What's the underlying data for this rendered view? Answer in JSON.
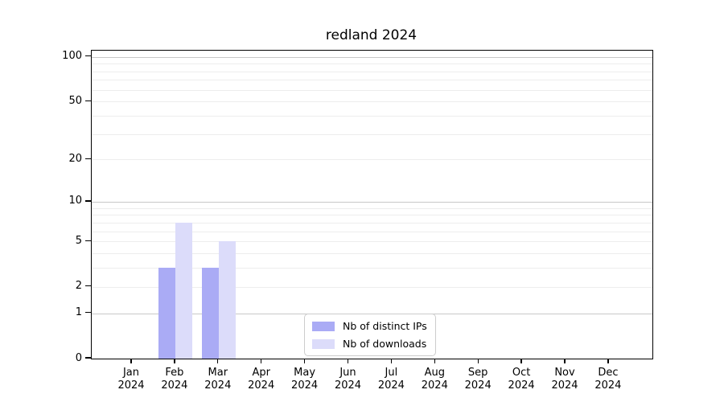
{
  "chart_data": {
    "type": "bar",
    "title": "redland 2024",
    "categories": [
      {
        "month": "Jan",
        "year": "2024"
      },
      {
        "month": "Feb",
        "year": "2024"
      },
      {
        "month": "Mar",
        "year": "2024"
      },
      {
        "month": "Apr",
        "year": "2024"
      },
      {
        "month": "May",
        "year": "2024"
      },
      {
        "month": "Jun",
        "year": "2024"
      },
      {
        "month": "Jul",
        "year": "2024"
      },
      {
        "month": "Aug",
        "year": "2024"
      },
      {
        "month": "Sep",
        "year": "2024"
      },
      {
        "month": "Oct",
        "year": "2024"
      },
      {
        "month": "Nov",
        "year": "2024"
      },
      {
        "month": "Dec",
        "year": "2024"
      }
    ],
    "series": [
      {
        "name": "Nb of distinct IPs",
        "color": "#aaabf5",
        "values": [
          0,
          3,
          3,
          0,
          0,
          0,
          0,
          0,
          0,
          0,
          0,
          0
        ]
      },
      {
        "name": "Nb of downloads",
        "color": "#dcdcfa",
        "values": [
          0,
          7,
          5,
          0,
          0,
          0,
          0,
          0,
          0,
          0,
          0,
          0
        ]
      }
    ],
    "y_axis": {
      "scale": "log1p",
      "tick_labels": [
        "0",
        "1",
        "2",
        "5",
        "10",
        "20",
        "50",
        "100"
      ],
      "tick_values": [
        0,
        1,
        2,
        5,
        10,
        20,
        50,
        100
      ],
      "ylim": [
        0,
        110
      ],
      "major_gridlines": [
        1,
        10,
        100
      ],
      "minor_gridlines": [
        2,
        3,
        4,
        5,
        6,
        7,
        8,
        9,
        20,
        30,
        40,
        50,
        60,
        70,
        80,
        90
      ]
    },
    "legend": {
      "position": "lower-center",
      "entries": [
        "Nb of distinct IPs",
        "Nb of downloads"
      ]
    },
    "grid": true,
    "xlabel": "",
    "ylabel": ""
  }
}
